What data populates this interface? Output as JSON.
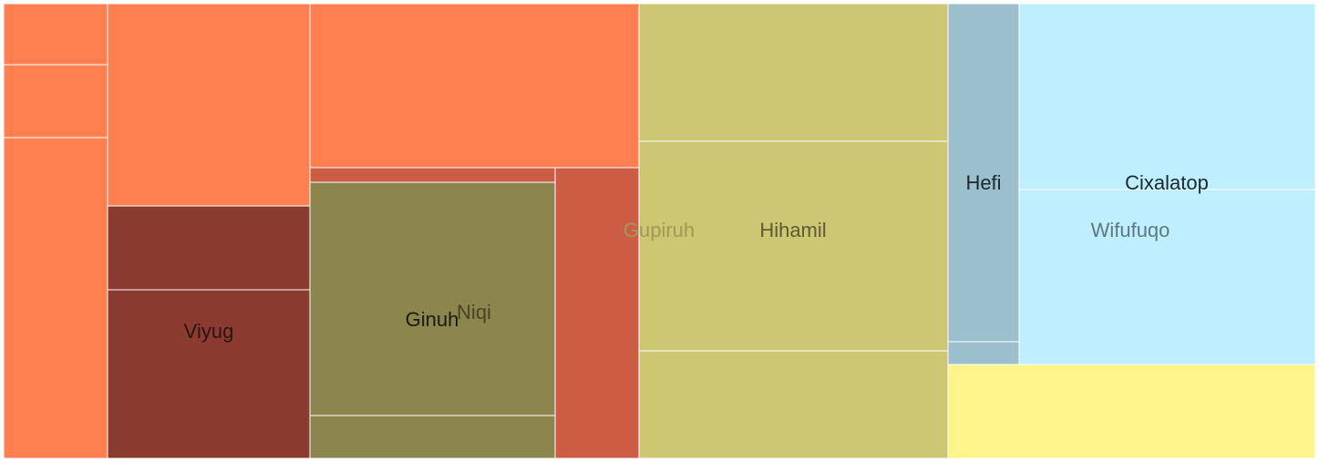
{
  "chart_data": {
    "type": "treemap",
    "title": "",
    "colors": {
      "orange": "#ff7f50",
      "red_orange": "#cd5c45",
      "dark_red": "#8b3a2f",
      "olive": "#8b864e",
      "khaki": "#cdc673",
      "steel_blue": "#9bbfcd",
      "light_blue": "#bfefff",
      "yellow": "#fff38b"
    },
    "nodes": [
      {
        "id": "o1",
        "label": "",
        "value": 7.7,
        "color": "orange"
      },
      {
        "id": "o2",
        "label": "",
        "value": 9.1,
        "color": "orange"
      },
      {
        "id": "o3",
        "label": "",
        "value": 40.0,
        "color": "orange"
      },
      {
        "id": "o4",
        "label": "",
        "value": 49.2,
        "color": "orange"
      },
      {
        "id": "o5",
        "label": "",
        "value": 65.2,
        "color": "orange"
      },
      {
        "id": "viyug_top",
        "label": "",
        "value": 20.3,
        "color": "dark_red"
      },
      {
        "id": "viyug",
        "label": "Viyug",
        "value": 41.0,
        "color": "dark_red"
      },
      {
        "id": "gupiruh_strip",
        "label": "",
        "value": 4.3,
        "color": "red_orange"
      },
      {
        "id": "gupiruh",
        "label": "Gupiruh",
        "value": 29.3,
        "color": "red_orange"
      },
      {
        "id": "ginuh",
        "label": "Ginuh",
        "value": 68.3,
        "color": "olive"
      },
      {
        "id": "niqi",
        "label": "Niqi",
        "value": 12.6,
        "color": "olive"
      },
      {
        "id": "hihamil_top",
        "label": "",
        "value": 51.3,
        "color": "khaki"
      },
      {
        "id": "hihamil",
        "label": "Hihamil",
        "value": 77.2,
        "color": "khaki"
      },
      {
        "id": "hihamil_bottom",
        "label": "",
        "value": 40.0,
        "color": "khaki"
      },
      {
        "id": "hefi",
        "label": "Hefi",
        "value": 28.8,
        "color": "steel_blue"
      },
      {
        "id": "hefi_strip",
        "label": "",
        "value": 1.9,
        "color": "steel_blue"
      },
      {
        "id": "cixalatop",
        "label": "Cixalatop",
        "value": 65.8,
        "color": "light_blue"
      },
      {
        "id": "wifufuqo",
        "label": "Wifufuqo",
        "value": 61.4,
        "color": "light_blue"
      },
      {
        "id": "yellow",
        "label": "",
        "value": 41.1,
        "color": "yellow"
      }
    ]
  }
}
